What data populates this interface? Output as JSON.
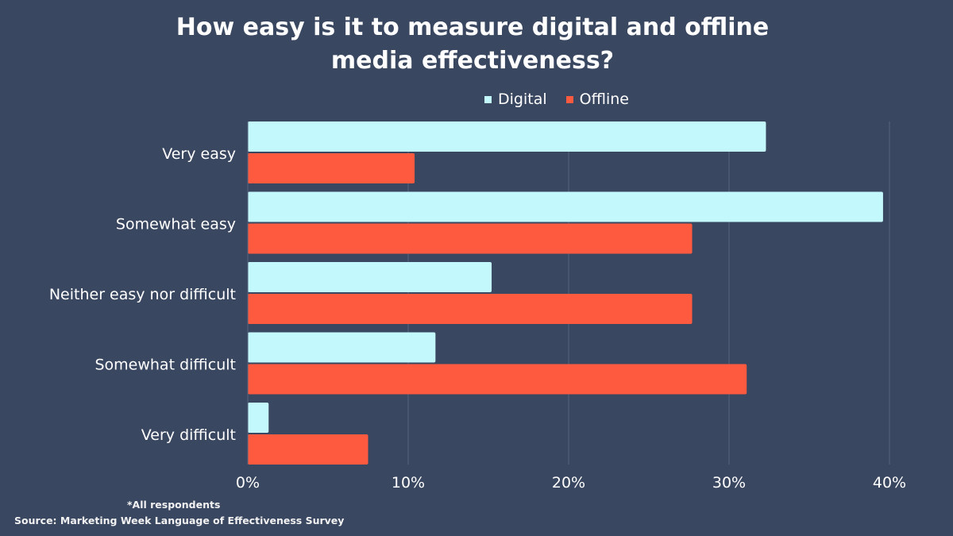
{
  "chart_data": {
    "type": "bar",
    "orientation": "horizontal",
    "title": [
      "How easy is it to measure digital and offline",
      "media effectiveness?"
    ],
    "categories": [
      "Very easy",
      "Somewhat easy",
      "Neither easy nor difficult",
      "Somewhat difficult",
      "Very difficult"
    ],
    "series": [
      {
        "name": "Digital",
        "color": "#c3f8fc",
        "values": [
          32.3,
          39.6,
          15.2,
          11.7,
          1.3
        ]
      },
      {
        "name": "Offline",
        "color": "#fe5a3f",
        "values": [
          10.4,
          27.7,
          27.7,
          31.1,
          7.5
        ]
      }
    ],
    "xlim": [
      0,
      40
    ],
    "xticks": [
      0,
      10,
      20,
      30,
      40
    ],
    "xtick_labels": [
      "0%",
      "10%",
      "20%",
      "30%",
      "40%"
    ],
    "grid": true,
    "legend_position": "top"
  },
  "footnote": "*All respondents",
  "source": "Source: Marketing Week Language of Effectiveness Survey"
}
